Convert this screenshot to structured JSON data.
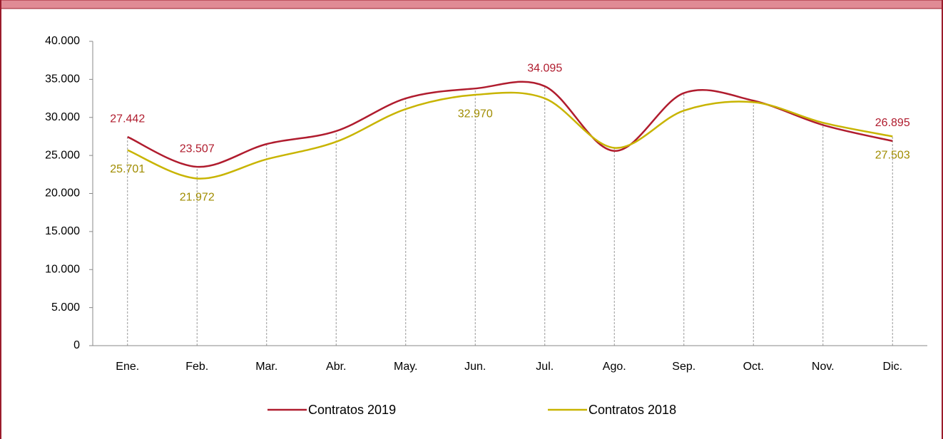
{
  "chart_data": {
    "type": "line",
    "categories": [
      "Ene.",
      "Feb.",
      "Mar.",
      "Abr.",
      "May.",
      "Jun.",
      "Jul.",
      "Ago.",
      "Sep.",
      "Oct.",
      "Nov.",
      "Dic."
    ],
    "series": [
      {
        "name": "Contratos 2019",
        "color": "#b01c2e",
        "label_color": "#b01c2e",
        "values": [
          27442,
          23507,
          26500,
          28200,
          32500,
          33800,
          34095,
          25600,
          33200,
          32200,
          29000,
          26895
        ],
        "value_labels": [
          "27.442",
          "23.507",
          null,
          null,
          null,
          null,
          "34.095",
          null,
          null,
          null,
          null,
          "26.895"
        ]
      },
      {
        "name": "Contratos 2018",
        "color": "#c8b400",
        "label_color": "#a08c00",
        "values": [
          25701,
          21972,
          24500,
          26800,
          31100,
          32970,
          32500,
          26000,
          30900,
          32000,
          29300,
          27503
        ],
        "value_labels": [
          "25.701",
          "21.972",
          null,
          null,
          null,
          "32.970",
          null,
          null,
          null,
          null,
          null,
          "27.503"
        ]
      }
    ],
    "ylim": [
      0,
      40000
    ],
    "yticks": [
      0,
      {
        "value": 5000,
        "label": "5.000"
      },
      {
        "value": 10000,
        "label": "10.000"
      },
      {
        "value": 15000,
        "label": "15.000"
      },
      {
        "value": 20000,
        "label": "20.000"
      },
      {
        "value": 25000,
        "label": "25.000"
      },
      {
        "value": 30000,
        "label": "30.000"
      },
      {
        "value": 35000,
        "label": "35.000"
      },
      {
        "value": 40000,
        "label": "40.000"
      }
    ],
    "smooth": true,
    "drop_lines": true,
    "legend": "bottom"
  }
}
